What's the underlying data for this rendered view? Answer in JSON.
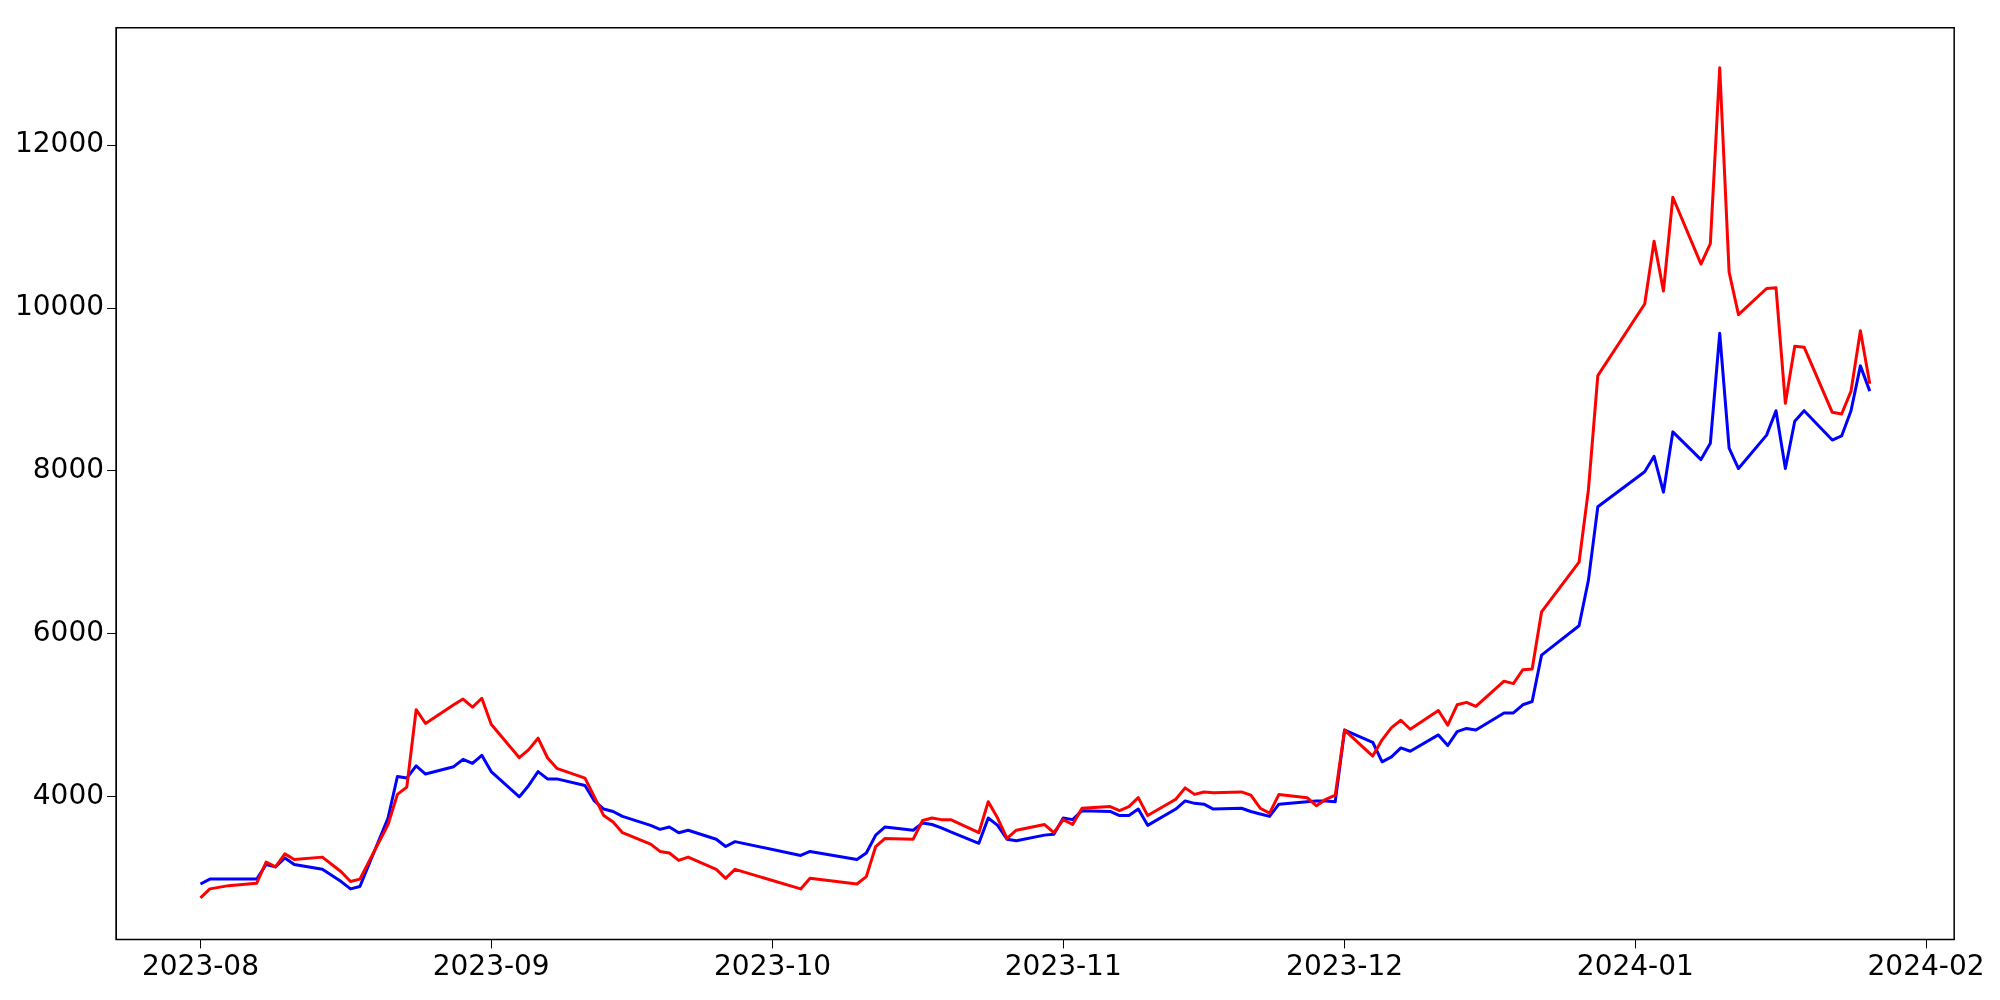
{
  "chart_data": {
    "type": "line",
    "x": [
      "2023-08-01",
      "2023-08-02",
      "2023-08-04",
      "2023-08-07",
      "2023-08-08",
      "2023-08-09",
      "2023-08-10",
      "2023-08-11",
      "2023-08-14",
      "2023-08-16",
      "2023-08-17",
      "2023-08-18",
      "2023-08-21",
      "2023-08-22",
      "2023-08-23",
      "2023-08-24",
      "2023-08-25",
      "2023-08-28",
      "2023-08-29",
      "2023-08-30",
      "2023-08-31",
      "2023-09-01",
      "2023-09-04",
      "2023-09-05",
      "2023-09-06",
      "2023-09-07",
      "2023-09-08",
      "2023-09-11",
      "2023-09-12",
      "2023-09-13",
      "2023-09-14",
      "2023-09-15",
      "2023-09-18",
      "2023-09-19",
      "2023-09-20",
      "2023-09-21",
      "2023-09-22",
      "2023-09-25",
      "2023-09-26",
      "2023-09-27",
      "2023-10-04",
      "2023-10-05",
      "2023-10-10",
      "2023-10-11",
      "2023-10-12",
      "2023-10-13",
      "2023-10-16",
      "2023-10-17",
      "2023-10-18",
      "2023-10-19",
      "2023-10-20",
      "2023-10-23",
      "2023-10-24",
      "2023-10-25",
      "2023-10-26",
      "2023-10-27",
      "2023-10-30",
      "2023-10-31",
      "2023-11-01",
      "2023-11-02",
      "2023-11-03",
      "2023-11-06",
      "2023-11-07",
      "2023-11-08",
      "2023-11-09",
      "2023-11-10",
      "2023-11-13",
      "2023-11-14",
      "2023-11-15",
      "2023-11-16",
      "2023-11-17",
      "2023-11-20",
      "2023-11-21",
      "2023-11-22",
      "2023-11-23",
      "2023-11-24",
      "2023-11-27",
      "2023-11-28",
      "2023-11-29",
      "2023-11-30",
      "2023-12-01",
      "2023-12-04",
      "2023-12-05",
      "2023-12-06",
      "2023-12-07",
      "2023-12-08",
      "2023-12-11",
      "2023-12-12",
      "2023-12-13",
      "2023-12-14",
      "2023-12-15",
      "2023-12-18",
      "2023-12-19",
      "2023-12-20",
      "2023-12-21",
      "2023-12-22",
      "2023-12-26",
      "2023-12-27",
      "2023-12-28",
      "2024-01-02",
      "2024-01-03",
      "2024-01-04",
      "2024-01-05",
      "2024-01-08",
      "2024-01-09",
      "2024-01-10",
      "2024-01-11",
      "2024-01-12",
      "2024-01-15",
      "2024-01-16",
      "2024-01-17",
      "2024-01-18",
      "2024-01-19",
      "2024-01-22",
      "2024-01-23",
      "2024-01-24",
      "2024-01-25",
      "2024-01-26"
    ],
    "series": [
      {
        "color": "#ff0000",
        "values": [
          2760,
          2870,
          2910,
          2940,
          3200,
          3140,
          3300,
          3230,
          3260,
          3080,
          2960,
          2990,
          3660,
          4030,
          4120,
          5070,
          4900,
          5130,
          5200,
          5100,
          5210,
          4890,
          4480,
          4580,
          4720,
          4480,
          4350,
          4230,
          4000,
          3770,
          3690,
          3560,
          3420,
          3330,
          3310,
          3220,
          3260,
          3110,
          3000,
          3110,
          2870,
          3000,
          2930,
          3020,
          3390,
          3490,
          3480,
          3710,
          3740,
          3720,
          3720,
          3560,
          3940,
          3740,
          3490,
          3590,
          3660,
          3560,
          3720,
          3660,
          3860,
          3880,
          3830,
          3880,
          3990,
          3770,
          3970,
          4110,
          4030,
          4060,
          4050,
          4060,
          4020,
          3860,
          3800,
          4030,
          3990,
          3890,
          3970,
          4020,
          4820,
          4500,
          4700,
          4850,
          4940,
          4830,
          5060,
          4880,
          5130,
          5160,
          5110,
          5420,
          5390,
          5560,
          5570,
          6270,
          6880,
          7770,
          9170,
          10050,
          10820,
          10210,
          11360,
          10540,
          10790,
          12950,
          10440,
          9920,
          10240,
          10250,
          8830,
          9530,
          9520,
          8720,
          8700,
          8980,
          9720,
          9070
        ]
      },
      {
        "color": "#0000ff",
        "values": [
          2930,
          2990,
          2990,
          2990,
          3170,
          3140,
          3250,
          3170,
          3110,
          2960,
          2870,
          2900,
          3740,
          4250,
          4230,
          4380,
          4280,
          4370,
          4460,
          4410,
          4510,
          4310,
          4000,
          4140,
          4310,
          4220,
          4220,
          4140,
          3950,
          3850,
          3820,
          3760,
          3650,
          3600,
          3630,
          3560,
          3590,
          3480,
          3390,
          3450,
          3280,
          3330,
          3230,
          3310,
          3530,
          3630,
          3590,
          3680,
          3660,
          3620,
          3570,
          3430,
          3740,
          3650,
          3480,
          3460,
          3530,
          3540,
          3740,
          3720,
          3830,
          3820,
          3770,
          3770,
          3850,
          3650,
          3850,
          3950,
          3920,
          3910,
          3850,
          3860,
          3820,
          3790,
          3760,
          3910,
          3940,
          3950,
          3950,
          3940,
          4820,
          4670,
          4430,
          4490,
          4600,
          4560,
          4760,
          4630,
          4800,
          4840,
          4820,
          5030,
          5030,
          5130,
          5170,
          5740,
          6100,
          6660,
          7560,
          7990,
          8180,
          7740,
          8480,
          8140,
          8340,
          9690,
          8280,
          8030,
          8440,
          8740,
          8030,
          8610,
          8740,
          8380,
          8430,
          8740,
          9290,
          8980
        ]
      }
    ],
    "xlim": [
      "2023-07-23",
      "2024-02-04"
    ],
    "xticks": [
      {
        "value": "2023-08-01",
        "label": "2023-08"
      },
      {
        "value": "2023-09-01",
        "label": "2023-09"
      },
      {
        "value": "2023-10-01",
        "label": "2023-10"
      },
      {
        "value": "2023-11-01",
        "label": "2023-11"
      },
      {
        "value": "2023-12-01",
        "label": "2023-12"
      },
      {
        "value": "2024-01-01",
        "label": "2024-01"
      },
      {
        "value": "2024-02-01",
        "label": "2024-02"
      }
    ],
    "ylim": [
      2250,
      13440
    ],
    "yticks": [
      4000,
      6000,
      8000,
      10000,
      12000
    ],
    "grid": false,
    "legend": false,
    "marker": "none",
    "line_style": "solid"
  }
}
